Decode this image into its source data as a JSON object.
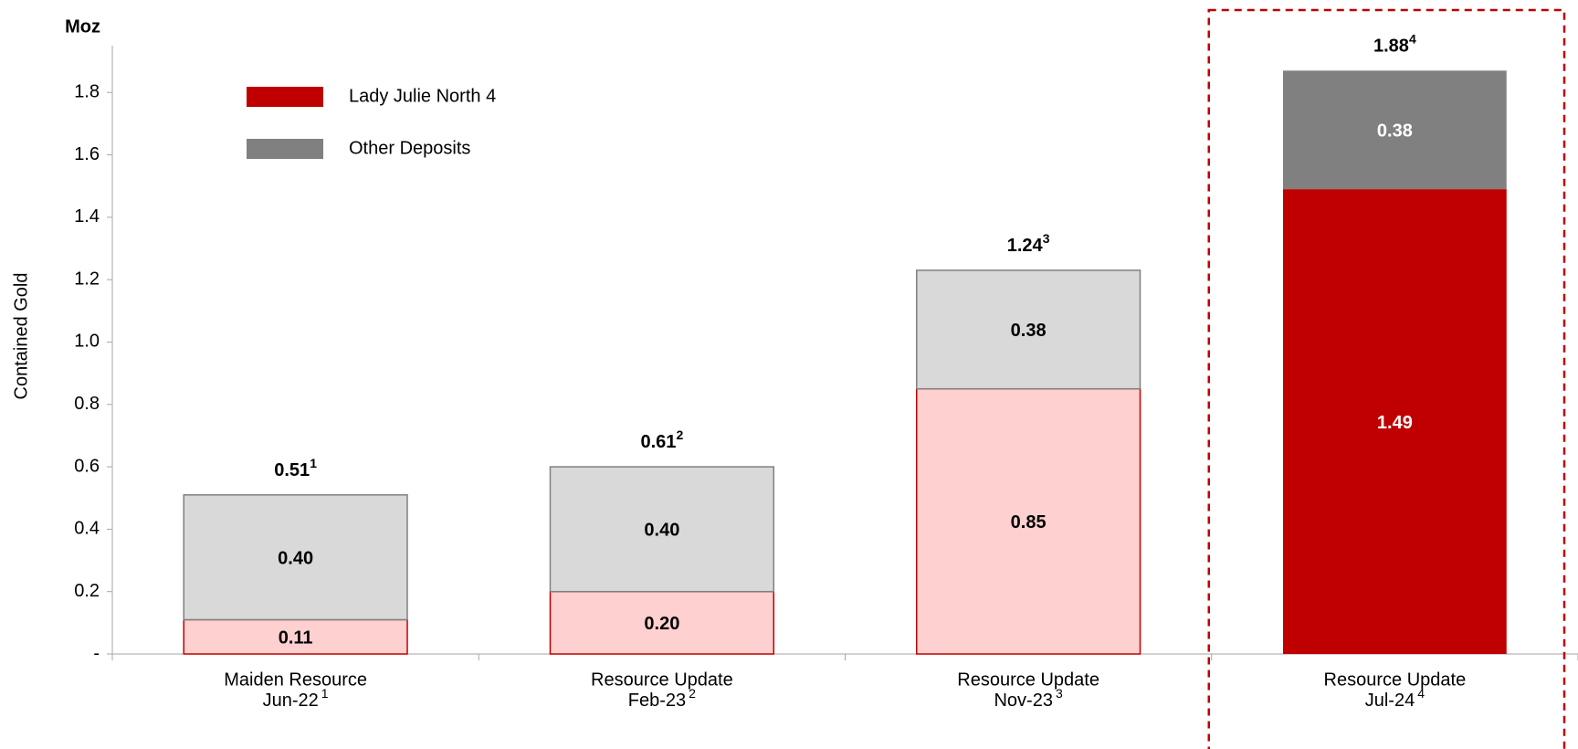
{
  "chart_data": {
    "type": "stacked-bar",
    "unit_label": "Moz",
    "y_label": "Contained Gold",
    "categories": [
      [
        "Maiden Resource",
        "Jun-22"
      ],
      [
        "Resource Update",
        "Feb-23"
      ],
      [
        "Resource Update",
        "Nov-23"
      ],
      [
        "Resource Update",
        "Jul-24"
      ]
    ],
    "footnotes": [
      "1",
      "2",
      "3",
      "4"
    ],
    "series": [
      {
        "name": "Lady Julie North 4",
        "color": "#c00000",
        "colors": [
          "#ffd0d0",
          "#ffd0d0",
          "#ffd0d0",
          "#c00000"
        ],
        "label_colors": [
          "#000000",
          "#000000",
          "#000000",
          "#ffffff"
        ],
        "values": [
          0.11,
          0.2,
          0.85,
          1.49
        ],
        "value_labels": [
          "0.11",
          "0.20",
          "0.85",
          "1.49"
        ]
      },
      {
        "name": "Other Deposits",
        "color": "#808080",
        "colors": [
          "#d9d9d9",
          "#d9d9d9",
          "#d9d9d9",
          "#808080"
        ],
        "label_colors": [
          "#000000",
          "#000000",
          "#000000",
          "#ffffff"
        ],
        "values": [
          0.4,
          0.4,
          0.38,
          0.38
        ],
        "value_labels": [
          "0.40",
          "0.40",
          "0.38",
          "0.38"
        ]
      }
    ],
    "totals": [
      0.51,
      0.61,
      1.24,
      1.88
    ],
    "highlighted_category": 3,
    "ylim": [
      0,
      1.95
    ],
    "yticks": [
      {
        "value": 0,
        "label": "-"
      },
      0.2,
      0.4,
      0.6,
      0.8,
      {
        "value": 1,
        "label": "1.0"
      },
      1.2,
      1.4,
      1.6,
      1.8
    ]
  }
}
